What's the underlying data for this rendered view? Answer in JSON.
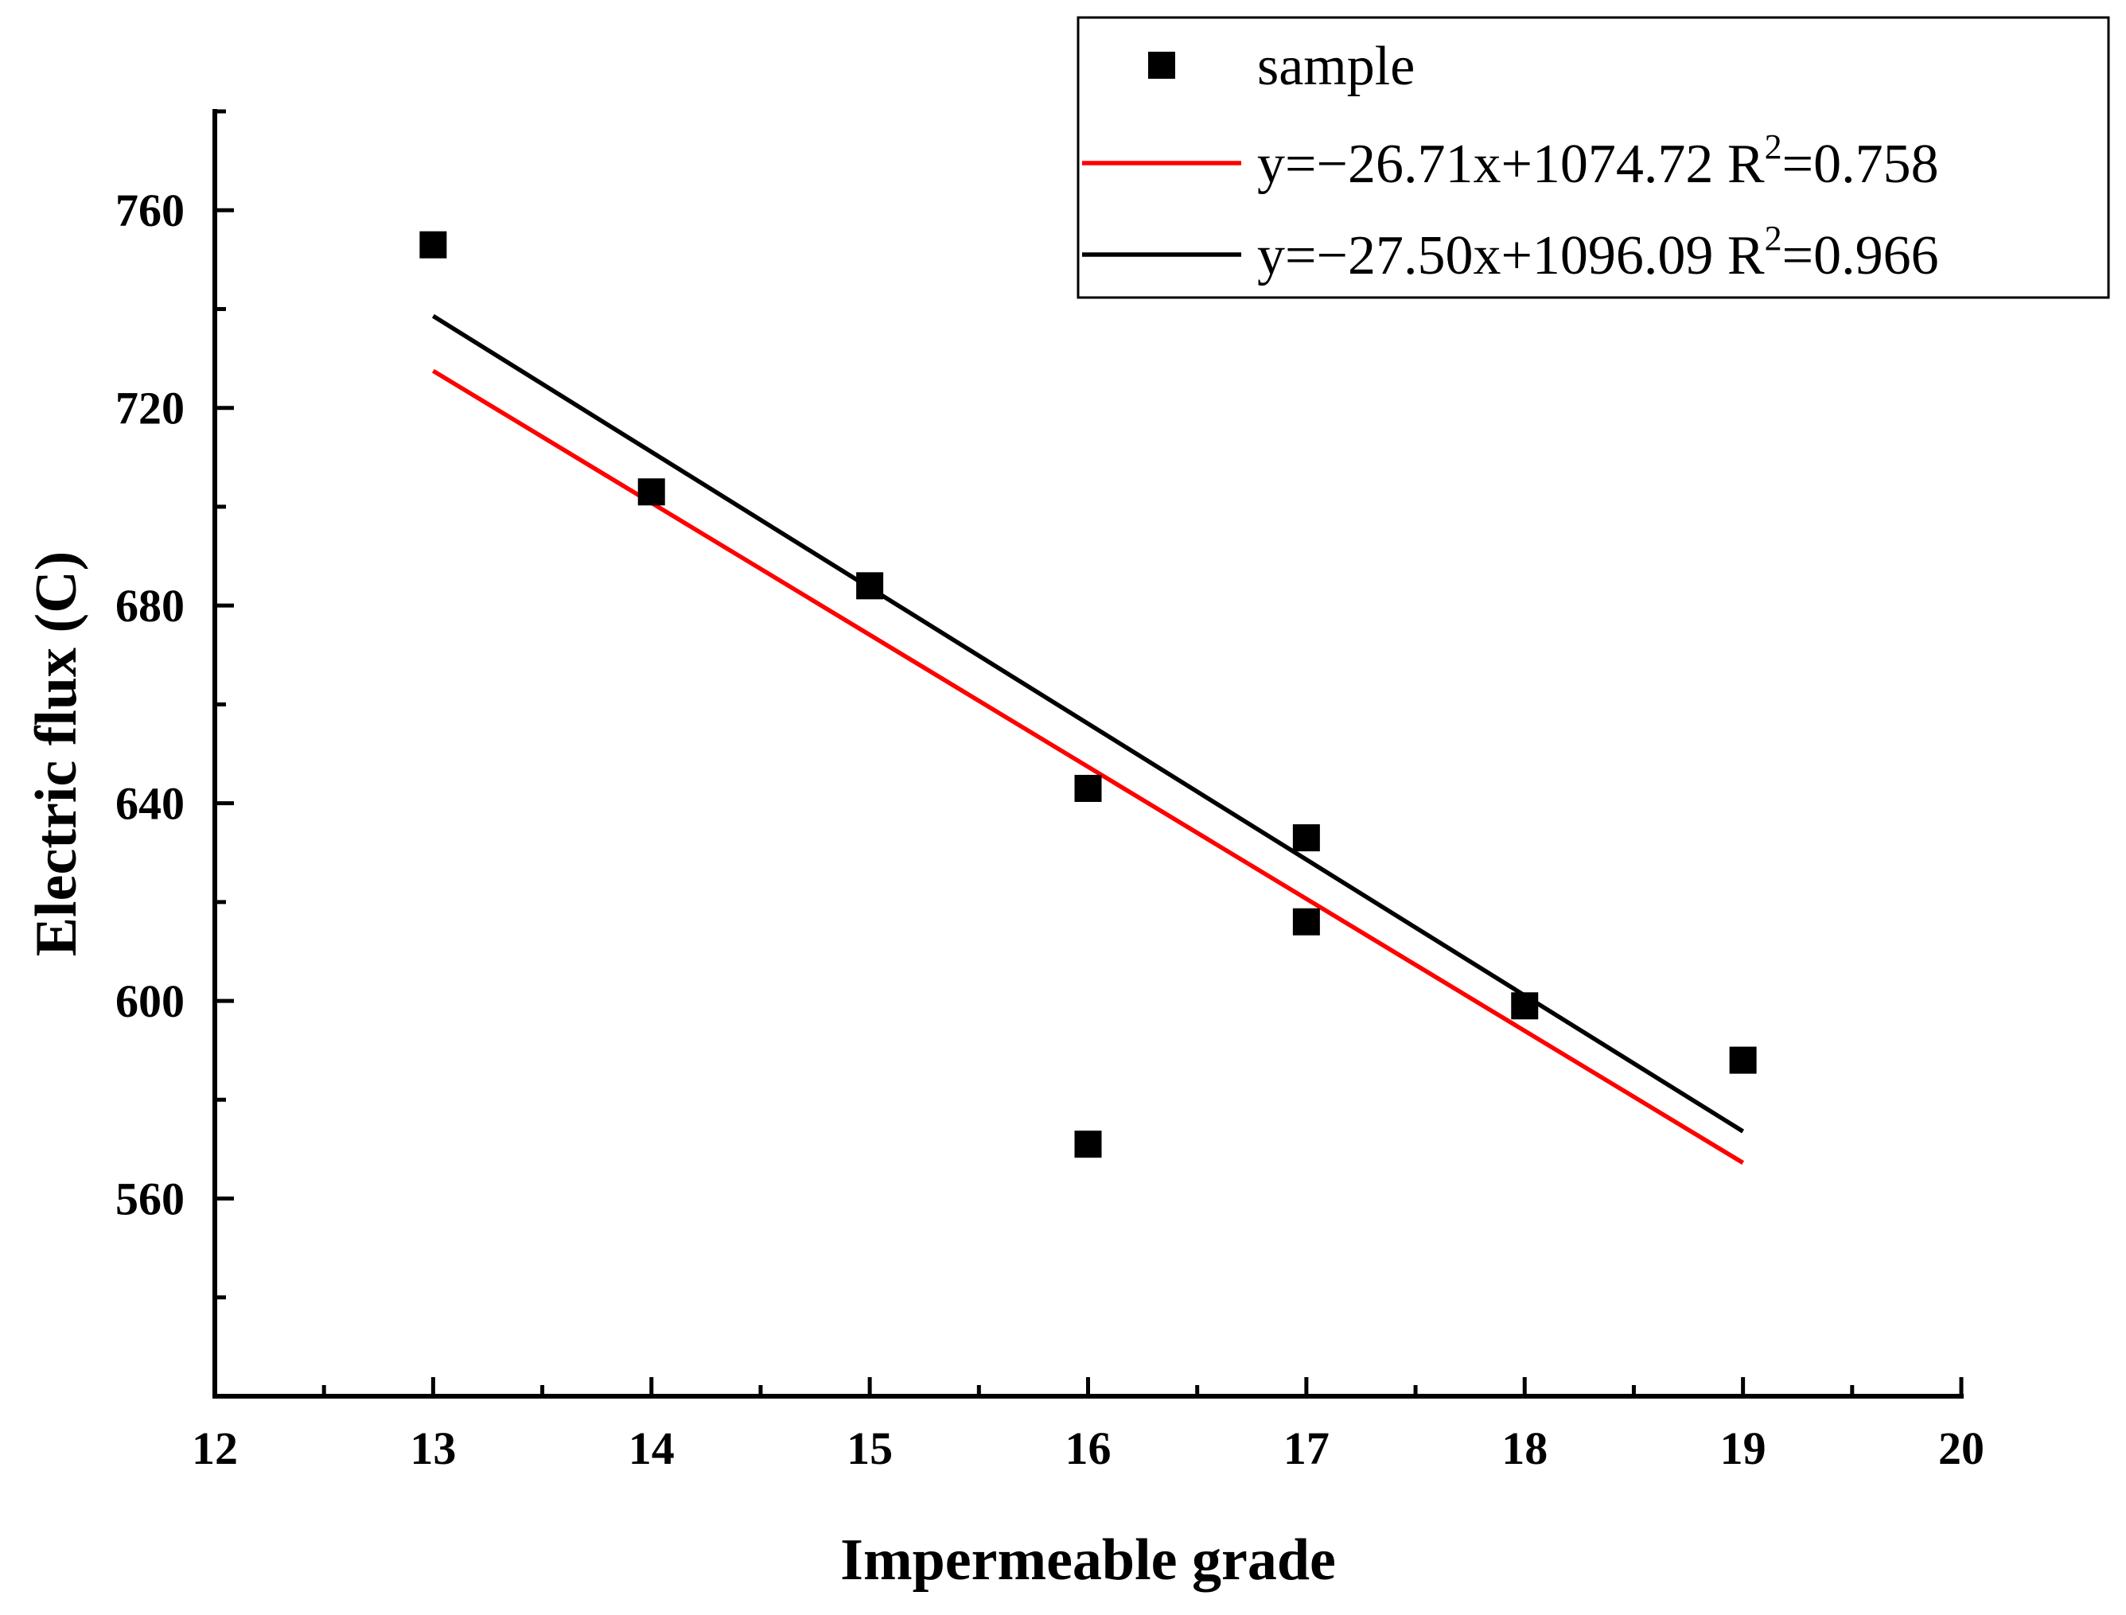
{
  "chart_data": {
    "type": "scatter",
    "title": "",
    "xlabel": "Impermeable grade",
    "ylabel": "Electric flux (C)",
    "xlim": [
      12,
      20
    ],
    "ylim": [
      520,
      780
    ],
    "x_ticks": [
      12,
      13,
      14,
      15,
      16,
      17,
      18,
      19,
      20
    ],
    "y_ticks": [
      560,
      600,
      640,
      680,
      720,
      760
    ],
    "grid": false,
    "legend_position": "top-right",
    "series": [
      {
        "name": "sample",
        "kind": "scatter",
        "color": "#000000",
        "x": [
          13,
          14,
          15,
          16,
          16,
          17,
          17,
          18,
          19
        ],
        "y": [
          753,
          703,
          684,
          643,
          571,
          633,
          616,
          599,
          588
        ]
      },
      {
        "name": "y=−26.71x+1074.72 R²=0.758",
        "kind": "line",
        "color": "#ff0000",
        "slope": -26.71,
        "intercept": 1074.72,
        "r2": 0.758,
        "x_range": [
          13,
          19
        ]
      },
      {
        "name": "y=−27.50x+1096.09 R²=0.966",
        "kind": "line",
        "color": "#000000",
        "slope": -27.5,
        "intercept": 1096.09,
        "r2": 0.966,
        "x_range": [
          13,
          19
        ]
      }
    ],
    "legend": [
      {
        "label": "sample",
        "marker": "square",
        "color": "#000000"
      },
      {
        "label_main": "y=−26.71x+1074.72 R",
        "label_sup": "2",
        "label_tail": "=0.758",
        "marker": "line",
        "color": "#ff0000"
      },
      {
        "label_main": "y=−27.50x+1096.09 R",
        "label_sup": "2",
        "label_tail": "=0.966",
        "marker": "line",
        "color": "#000000"
      }
    ]
  }
}
